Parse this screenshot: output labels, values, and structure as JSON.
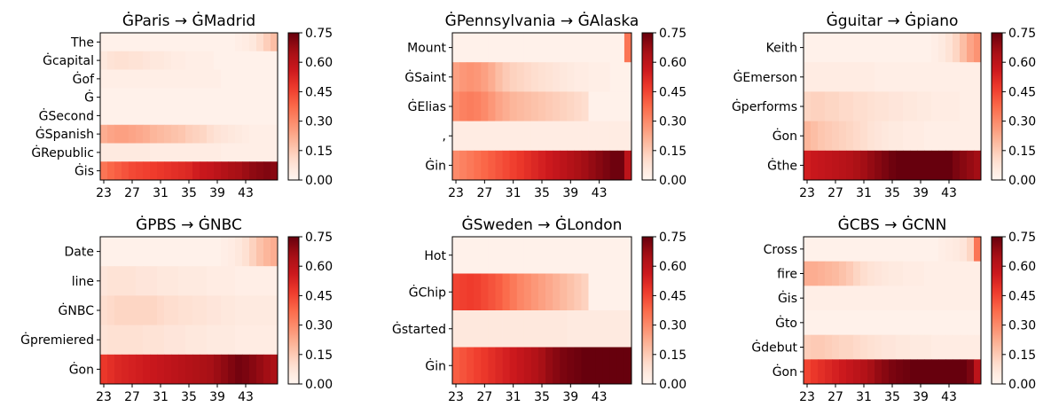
{
  "chart_data": [
    {
      "type": "heatmap",
      "title": "ĠParis → ĠMadrid",
      "rows": [
        "The",
        "Ġcapital",
        "Ġof",
        "Ġ",
        "ĠSecond",
        "ĠSpanish",
        "ĠRepublic",
        "Ġis"
      ],
      "x_start": 23,
      "x_ticks": [
        "23",
        "27",
        "31",
        "35",
        "39",
        "43"
      ],
      "values": [
        [
          0.02,
          0.02,
          0.02,
          0.02,
          0.02,
          0.02,
          0.02,
          0.02,
          0.02,
          0.02,
          0.02,
          0.02,
          0.02,
          0.02,
          0.02,
          0.02,
          0.02,
          0.02,
          0.02,
          0.03,
          0.04,
          0.06,
          0.1,
          0.14,
          0.18
        ],
        [
          0.06,
          0.08,
          0.09,
          0.09,
          0.08,
          0.08,
          0.07,
          0.06,
          0.06,
          0.05,
          0.04,
          0.04,
          0.03,
          0.03,
          0.03,
          0.03,
          0.02,
          0.02,
          0.02,
          0.02,
          0.02,
          0.02,
          0.02,
          0.02,
          0.02
        ],
        [
          0.03,
          0.03,
          0.03,
          0.03,
          0.03,
          0.03,
          0.03,
          0.03,
          0.03,
          0.03,
          0.03,
          0.03,
          0.03,
          0.03,
          0.03,
          0.03,
          0.03,
          0.02,
          0.02,
          0.02,
          0.02,
          0.02,
          0.02,
          0.02,
          0.02
        ],
        [
          0.02,
          0.02,
          0.02,
          0.02,
          0.02,
          0.02,
          0.02,
          0.02,
          0.02,
          0.02,
          0.02,
          0.02,
          0.02,
          0.02,
          0.02,
          0.02,
          0.02,
          0.02,
          0.02,
          0.02,
          0.02,
          0.02,
          0.02,
          0.02,
          0.02
        ],
        [
          0.02,
          0.02,
          0.02,
          0.02,
          0.02,
          0.02,
          0.02,
          0.02,
          0.02,
          0.02,
          0.02,
          0.02,
          0.02,
          0.02,
          0.02,
          0.02,
          0.02,
          0.02,
          0.02,
          0.02,
          0.02,
          0.02,
          0.02,
          0.02,
          0.02
        ],
        [
          0.22,
          0.24,
          0.25,
          0.25,
          0.24,
          0.23,
          0.22,
          0.2,
          0.19,
          0.18,
          0.17,
          0.16,
          0.14,
          0.13,
          0.12,
          0.1,
          0.08,
          0.07,
          0.06,
          0.05,
          0.04,
          0.03,
          0.03,
          0.03,
          0.03
        ],
        [
          0.05,
          0.05,
          0.05,
          0.05,
          0.05,
          0.05,
          0.05,
          0.04,
          0.04,
          0.04,
          0.04,
          0.04,
          0.04,
          0.04,
          0.04,
          0.04,
          0.04,
          0.03,
          0.03,
          0.03,
          0.03,
          0.03,
          0.03,
          0.03,
          0.03
        ],
        [
          0.35,
          0.38,
          0.4,
          0.42,
          0.44,
          0.45,
          0.46,
          0.47,
          0.48,
          0.49,
          0.5,
          0.51,
          0.52,
          0.55,
          0.57,
          0.58,
          0.6,
          0.62,
          0.64,
          0.65,
          0.67,
          0.69,
          0.7,
          0.71,
          0.7
        ]
      ]
    },
    {
      "type": "heatmap",
      "title": "ĠPennsylvania → ĠAlaska",
      "rows": [
        "Mount",
        "ĠSaint",
        "ĠElias",
        ",",
        "Ġin"
      ],
      "x_start": 23,
      "x_ticks": [
        "23",
        "27",
        "31",
        "35",
        "39",
        "43"
      ],
      "values": [
        [
          0.02,
          0.02,
          0.02,
          0.02,
          0.02,
          0.02,
          0.02,
          0.02,
          0.02,
          0.02,
          0.02,
          0.02,
          0.02,
          0.02,
          0.02,
          0.02,
          0.02,
          0.02,
          0.02,
          0.02,
          0.02,
          0.02,
          0.02,
          0.02,
          0.35
        ],
        [
          0.25,
          0.27,
          0.28,
          0.27,
          0.25,
          0.22,
          0.18,
          0.15,
          0.13,
          0.12,
          0.11,
          0.1,
          0.09,
          0.08,
          0.07,
          0.06,
          0.05,
          0.04,
          0.04,
          0.03,
          0.03,
          0.03,
          0.02,
          0.02,
          0.02
        ],
        [
          0.3,
          0.32,
          0.33,
          0.32,
          0.3,
          0.27,
          0.24,
          0.22,
          0.2,
          0.19,
          0.18,
          0.17,
          0.16,
          0.15,
          0.14,
          0.13,
          0.12,
          0.11,
          0.1,
          0.02,
          0.02,
          0.02,
          0.02,
          0.02,
          0.02
        ],
        [
          0.04,
          0.04,
          0.04,
          0.04,
          0.04,
          0.04,
          0.04,
          0.04,
          0.04,
          0.04,
          0.04,
          0.04,
          0.04,
          0.04,
          0.04,
          0.04,
          0.04,
          0.04,
          0.04,
          0.04,
          0.04,
          0.04,
          0.04,
          0.04,
          0.04
        ],
        [
          0.3,
          0.32,
          0.34,
          0.36,
          0.38,
          0.4,
          0.42,
          0.44,
          0.46,
          0.48,
          0.5,
          0.52,
          0.54,
          0.56,
          0.58,
          0.6,
          0.62,
          0.64,
          0.66,
          0.68,
          0.7,
          0.72,
          0.74,
          0.74,
          0.6
        ]
      ]
    },
    {
      "type": "heatmap",
      "title": "Ġguitar → Ġpiano",
      "rows": [
        "Keith",
        "ĠEmerson",
        "Ġperforms",
        "Ġon",
        "Ġthe"
      ],
      "x_start": 23,
      "x_ticks": [
        "23",
        "27",
        "31",
        "35",
        "39",
        "43"
      ],
      "values": [
        [
          0.02,
          0.02,
          0.02,
          0.02,
          0.02,
          0.02,
          0.02,
          0.02,
          0.02,
          0.02,
          0.02,
          0.02,
          0.02,
          0.02,
          0.02,
          0.02,
          0.02,
          0.02,
          0.03,
          0.05,
          0.08,
          0.12,
          0.18,
          0.24,
          0.28
        ],
        [
          0.04,
          0.04,
          0.04,
          0.04,
          0.04,
          0.04,
          0.04,
          0.04,
          0.04,
          0.04,
          0.03,
          0.03,
          0.03,
          0.03,
          0.03,
          0.03,
          0.03,
          0.03,
          0.03,
          0.03,
          0.03,
          0.03,
          0.03,
          0.03,
          0.03
        ],
        [
          0.12,
          0.13,
          0.13,
          0.12,
          0.12,
          0.11,
          0.11,
          0.1,
          0.1,
          0.09,
          0.08,
          0.08,
          0.07,
          0.07,
          0.06,
          0.06,
          0.05,
          0.05,
          0.04,
          0.04,
          0.04,
          0.04,
          0.03,
          0.03,
          0.03
        ],
        [
          0.2,
          0.18,
          0.16,
          0.15,
          0.14,
          0.13,
          0.12,
          0.11,
          0.1,
          0.08,
          0.07,
          0.06,
          0.05,
          0.05,
          0.04,
          0.04,
          0.04,
          0.03,
          0.03,
          0.03,
          0.03,
          0.03,
          0.03,
          0.03,
          0.03
        ],
        [
          0.55,
          0.57,
          0.58,
          0.59,
          0.6,
          0.61,
          0.62,
          0.64,
          0.66,
          0.68,
          0.7,
          0.72,
          0.74,
          0.75,
          0.75,
          0.75,
          0.75,
          0.75,
          0.75,
          0.75,
          0.75,
          0.72,
          0.7,
          0.68,
          0.66
        ]
      ]
    },
    {
      "type": "heatmap",
      "title": "ĠPBS → ĠNBC",
      "rows": [
        "Date",
        "line",
        "ĠNBC",
        "Ġpremiered",
        "Ġon"
      ],
      "x_start": 23,
      "x_ticks": [
        "23",
        "27",
        "31",
        "35",
        "39",
        "43"
      ],
      "values": [
        [
          0.02,
          0.02,
          0.02,
          0.02,
          0.02,
          0.02,
          0.02,
          0.02,
          0.02,
          0.02,
          0.02,
          0.02,
          0.02,
          0.02,
          0.02,
          0.02,
          0.02,
          0.03,
          0.04,
          0.06,
          0.09,
          0.13,
          0.17,
          0.2,
          0.22
        ],
        [
          0.07,
          0.08,
          0.08,
          0.08,
          0.08,
          0.07,
          0.07,
          0.07,
          0.06,
          0.06,
          0.06,
          0.05,
          0.05,
          0.05,
          0.05,
          0.04,
          0.04,
          0.04,
          0.04,
          0.03,
          0.03,
          0.03,
          0.03,
          0.03,
          0.03
        ],
        [
          0.1,
          0.11,
          0.12,
          0.12,
          0.12,
          0.12,
          0.12,
          0.12,
          0.11,
          0.1,
          0.1,
          0.09,
          0.09,
          0.08,
          0.08,
          0.07,
          0.07,
          0.06,
          0.06,
          0.05,
          0.05,
          0.05,
          0.05,
          0.05,
          0.05
        ],
        [
          0.08,
          0.09,
          0.09,
          0.09,
          0.09,
          0.09,
          0.08,
          0.08,
          0.08,
          0.07,
          0.07,
          0.07,
          0.06,
          0.06,
          0.06,
          0.05,
          0.05,
          0.05,
          0.05,
          0.04,
          0.04,
          0.04,
          0.04,
          0.04,
          0.04
        ],
        [
          0.48,
          0.5,
          0.52,
          0.53,
          0.54,
          0.55,
          0.56,
          0.57,
          0.58,
          0.59,
          0.6,
          0.61,
          0.62,
          0.63,
          0.64,
          0.65,
          0.67,
          0.69,
          0.71,
          0.73,
          0.72,
          0.7,
          0.68,
          0.66,
          0.64
        ]
      ]
    },
    {
      "type": "heatmap",
      "title": "ĠSweden → ĠLondon",
      "rows": [
        "Hot",
        "ĠChip",
        "Ġstarted",
        "Ġin"
      ],
      "x_start": 23,
      "x_ticks": [
        "23",
        "27",
        "31",
        "35",
        "39",
        "43"
      ],
      "values": [
        [
          0.02,
          0.02,
          0.02,
          0.02,
          0.02,
          0.02,
          0.02,
          0.02,
          0.02,
          0.02,
          0.02,
          0.02,
          0.02,
          0.02,
          0.02,
          0.02,
          0.02,
          0.02,
          0.02,
          0.02,
          0.02,
          0.02,
          0.02,
          0.02,
          0.02
        ],
        [
          0.45,
          0.46,
          0.47,
          0.46,
          0.44,
          0.42,
          0.4,
          0.37,
          0.34,
          0.31,
          0.29,
          0.27,
          0.25,
          0.23,
          0.21,
          0.19,
          0.17,
          0.15,
          0.13,
          0.02,
          0.02,
          0.02,
          0.02,
          0.02,
          0.02
        ],
        [
          0.06,
          0.06,
          0.06,
          0.06,
          0.06,
          0.06,
          0.06,
          0.06,
          0.06,
          0.06,
          0.06,
          0.06,
          0.06,
          0.06,
          0.06,
          0.06,
          0.05,
          0.05,
          0.05,
          0.05,
          0.05,
          0.05,
          0.05,
          0.05,
          0.05
        ],
        [
          0.4,
          0.42,
          0.44,
          0.46,
          0.48,
          0.5,
          0.52,
          0.54,
          0.56,
          0.58,
          0.6,
          0.62,
          0.65,
          0.68,
          0.7,
          0.72,
          0.73,
          0.74,
          0.75,
          0.75,
          0.75,
          0.75,
          0.75,
          0.75,
          0.75
        ]
      ]
    },
    {
      "type": "heatmap",
      "title": "ĠCBS → ĠCNN",
      "rows": [
        "Cross",
        "fire",
        "Ġis",
        "Ġto",
        "Ġdebut",
        "Ġon"
      ],
      "x_start": 23,
      "x_ticks": [
        "23",
        "27",
        "31",
        "35",
        "39",
        "43"
      ],
      "values": [
        [
          0.02,
          0.02,
          0.02,
          0.02,
          0.02,
          0.02,
          0.02,
          0.02,
          0.02,
          0.02,
          0.02,
          0.02,
          0.02,
          0.02,
          0.02,
          0.02,
          0.02,
          0.02,
          0.02,
          0.03,
          0.04,
          0.05,
          0.07,
          0.12,
          0.35
        ],
        [
          0.22,
          0.22,
          0.21,
          0.2,
          0.19,
          0.17,
          0.15,
          0.12,
          0.1,
          0.08,
          0.07,
          0.06,
          0.05,
          0.05,
          0.04,
          0.04,
          0.04,
          0.03,
          0.03,
          0.03,
          0.03,
          0.03,
          0.03,
          0.03,
          0.03
        ],
        [
          0.03,
          0.03,
          0.03,
          0.03,
          0.03,
          0.03,
          0.03,
          0.03,
          0.03,
          0.03,
          0.03,
          0.03,
          0.03,
          0.03,
          0.03,
          0.03,
          0.03,
          0.03,
          0.03,
          0.03,
          0.03,
          0.03,
          0.03,
          0.03,
          0.03
        ],
        [
          0.02,
          0.02,
          0.02,
          0.02,
          0.02,
          0.02,
          0.02,
          0.02,
          0.02,
          0.02,
          0.02,
          0.02,
          0.02,
          0.02,
          0.02,
          0.02,
          0.02,
          0.02,
          0.02,
          0.02,
          0.02,
          0.02,
          0.02,
          0.02,
          0.02
        ],
        [
          0.14,
          0.15,
          0.15,
          0.14,
          0.13,
          0.12,
          0.12,
          0.11,
          0.1,
          0.09,
          0.08,
          0.07,
          0.07,
          0.06,
          0.06,
          0.05,
          0.05,
          0.05,
          0.04,
          0.04,
          0.04,
          0.04,
          0.04,
          0.04,
          0.04
        ],
        [
          0.45,
          0.48,
          0.5,
          0.52,
          0.54,
          0.56,
          0.58,
          0.6,
          0.62,
          0.65,
          0.68,
          0.7,
          0.72,
          0.73,
          0.74,
          0.75,
          0.75,
          0.75,
          0.75,
          0.75,
          0.75,
          0.75,
          0.75,
          0.72,
          0.6
        ]
      ]
    }
  ],
  "colorbar": {
    "ticks": [
      "0.00",
      "0.15",
      "0.30",
      "0.45",
      "0.60",
      "0.75"
    ],
    "range": [
      0,
      0.75
    ]
  }
}
